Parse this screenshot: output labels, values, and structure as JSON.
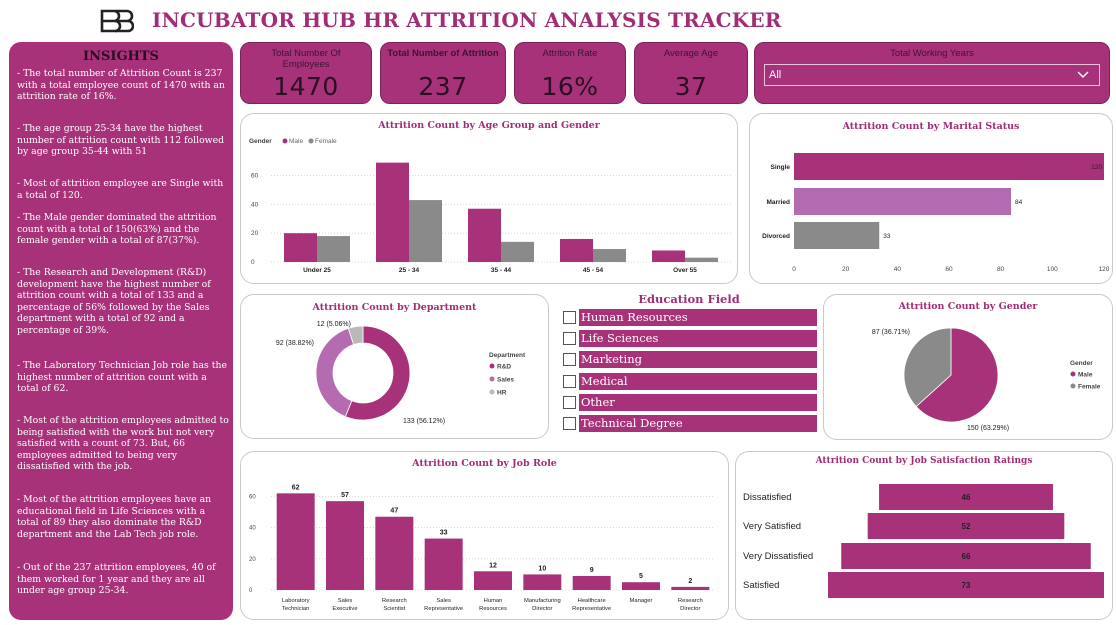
{
  "header": {
    "title": "INCUBATOR HUB HR ATTRITION ANALYSIS TRACKER",
    "logo_icon": "bb-logo-icon"
  },
  "insights": {
    "title": "INSIGHTS",
    "items": [
      "- The total number of Attrition Count is 237 with a total employee count of 1470 with an attrition rate of 16%.",
      "- The age group 25-34 have the highest number of attrition count with 112 followed by age group 35-44 with 51",
      "- Most of attrition employee are Single with a total of 120.",
      "- The Male gender dominated the attrition count with a total of 150(63%) and the female gender with a total of 87(37%).",
      "- The Research and Development (R&D) development have the highest number of attrition count with a total of 133 and a percentage of 56% followed by the Sales department with a total of 92 and a percentage of 39%.",
      "- The Laboratory Technician Job role has the highest number of attrition count with a total of 62.",
      "- Most of the attrition employees admitted to being satisfied with the work but not very satisfied with a count of 73. But, 66 employees admitted to being very dissatisfied with the job.",
      "- Most of the attrition employees have an educational field in Life Sciences with a total of 89 they also dominate the R&D department and the Lab Tech job role.",
      "- Out of the 237 attrition employees, 40 of them worked for 1 year and they are all under age group 25-34."
    ]
  },
  "kpis": [
    {
      "label": "Total Number Of Employees",
      "value": "1470"
    },
    {
      "label": "Total Number of Attrition",
      "value": "237"
    },
    {
      "label": "Attrition Rate",
      "value": "16%"
    },
    {
      "label": "Average Age",
      "value": "37"
    }
  ],
  "filter": {
    "label": "Total Working Years",
    "value": "All"
  },
  "colors": {
    "primary": "#a8327a",
    "light": "#b56bb0",
    "gray": "#8a8a8a"
  },
  "chart_data": [
    {
      "type": "bar",
      "title": "Attrition Count by Age Group and Gender",
      "legend_title": "Gender",
      "categories": [
        "Under 25",
        "25 - 34",
        "35 - 44",
        "45 - 54",
        "Over 55"
      ],
      "series": [
        {
          "name": "Male",
          "values": [
            20,
            69,
            37,
            16,
            8
          ]
        },
        {
          "name": "Female",
          "values": [
            18,
            43,
            14,
            9,
            3
          ]
        }
      ],
      "yticks": [
        "0",
        "20",
        "40",
        "60"
      ],
      "ylim": [
        0,
        75
      ]
    },
    {
      "type": "bar",
      "orientation": "horizontal",
      "title": "Attrition Count by Marital Status",
      "categories": [
        "Single",
        "Married",
        "Divorced"
      ],
      "values": [
        120,
        84,
        33
      ],
      "xticks": [
        "0",
        "20",
        "40",
        "60",
        "80",
        "100",
        "120"
      ],
      "xlim": [
        0,
        120
      ]
    },
    {
      "type": "pie",
      "subtype": "donut",
      "title": "Attrition Count by Department",
      "legend_title": "Department",
      "categories": [
        "R&D",
        "Sales",
        "HR"
      ],
      "values": [
        133,
        92,
        12
      ],
      "labels": [
        "133 (56.12%)",
        "92 (38.82%)",
        "12 (5.06%)"
      ]
    },
    {
      "type": "pie",
      "title": "Attrition Count by Gender",
      "legend_title": "Gender",
      "categories": [
        "Male",
        "Female"
      ],
      "values": [
        150,
        87
      ],
      "labels": [
        "150 (63.29%)",
        "87 (36.71%)"
      ]
    },
    {
      "type": "bar",
      "title": "Attrition Count by Job Role",
      "categories": [
        "Laboratory Technician",
        "Sales Executive",
        "Research Scientist",
        "Sales Representative",
        "Human Resources",
        "Manufacturing Director",
        "Healthcare Representative",
        "Manager",
        "Research Director"
      ],
      "values": [
        62,
        57,
        47,
        33,
        12,
        10,
        9,
        5,
        2
      ],
      "yticks": [
        "0",
        "20",
        "40",
        "60"
      ],
      "ylim": [
        0,
        68
      ]
    },
    {
      "type": "bar",
      "subtype": "funnel",
      "title": "Attrition Count by Job Satisfaction Ratings",
      "categories": [
        "Dissatisfied",
        "Very Satisfied",
        "Very Dissatisfied",
        "Satisfied"
      ],
      "values": [
        46,
        52,
        66,
        73
      ]
    }
  ],
  "education": {
    "title": "Education Field",
    "items": [
      "Human Resources",
      "Life Sciences",
      "Marketing",
      "Medical",
      "Other",
      "Technical Degree"
    ]
  }
}
